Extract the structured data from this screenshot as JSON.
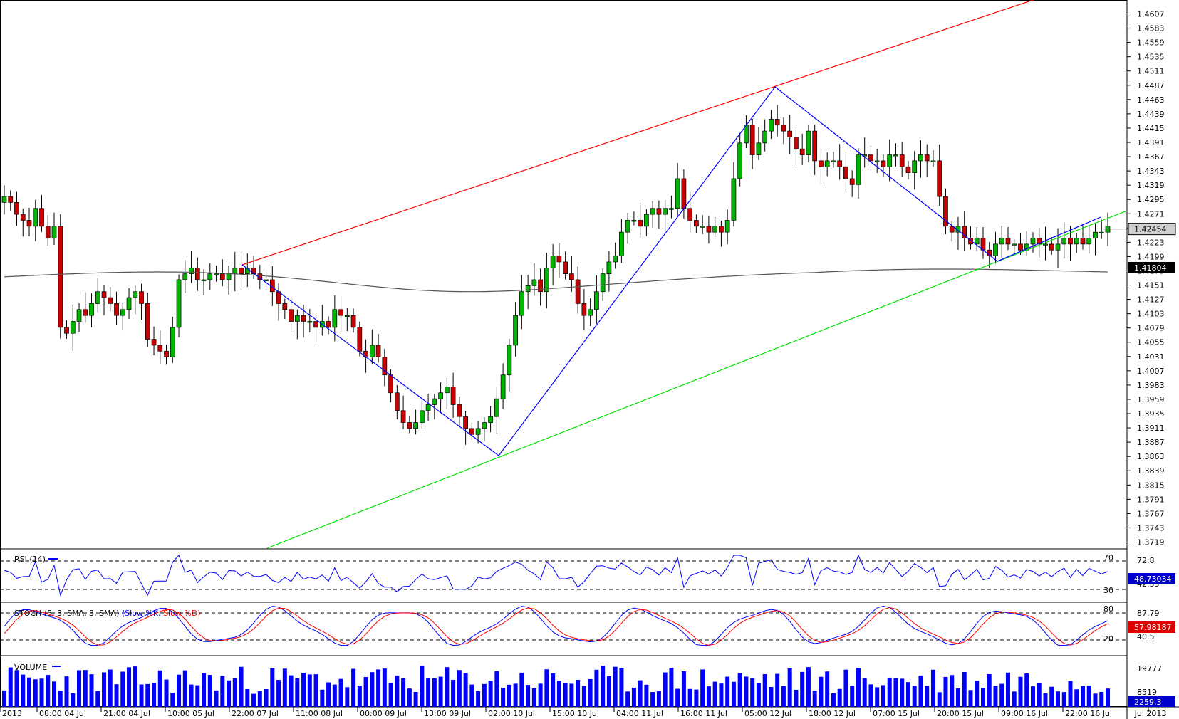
{
  "chart_data": {
    "type": "candlestick",
    "y_ticks": [
      "1.4607",
      "1.4583",
      "1.4559",
      "1.4535",
      "1.4511",
      "1.4487",
      "1.4463",
      "1.4439",
      "1.4415",
      "1.4391",
      "1.4367",
      "1.4343",
      "1.4319",
      "1.4295",
      "1.4271",
      "1.4247",
      "1.4223",
      "1.4199",
      "1.4175",
      "1.4151",
      "1.4127",
      "1.4103",
      "1.4079",
      "1.4055",
      "1.4031",
      "1.4007",
      "1.3983",
      "1.3959",
      "1.3935",
      "1.3911",
      "1.3887",
      "1.3863",
      "1.3839",
      "1.3815",
      "1.3791",
      "1.3767",
      "1.3743",
      "1.3719"
    ],
    "x_ticks": [
      "2013",
      "08:00 04 Jul",
      "21:00 04 Jul",
      "10:00 05 Jul",
      "22:00 07 Jul",
      "11:00 08 Jul",
      "00:00 09 Jul",
      "13:00 09 Jul",
      "02:00 10 Jul",
      "15:00 10 Jul",
      "04:00 11 Jul",
      "16:00 11 Jul",
      "05:00 12 Jul",
      "18:00 12 Jul",
      "07:00 15 Jul",
      "20:00 15 Jul",
      "09:00 16 Jul",
      "22:00 16 Jul",
      "Jul 2013"
    ],
    "ylim": [
      1.3716,
      1.4616
    ],
    "current_price": "1.42454",
    "moving_average_value": "1.41804",
    "closes": [
      1.43,
      1.429,
      1.427,
      1.426,
      1.425,
      1.428,
      1.425,
      1.423,
      1.425,
      1.408,
      1.407,
      1.409,
      1.411,
      1.41,
      1.412,
      1.414,
      1.413,
      1.412,
      1.41,
      1.411,
      1.413,
      1.414,
      1.412,
      1.406,
      1.405,
      1.404,
      1.403,
      1.408,
      1.416,
      1.417,
      1.418,
      1.416,
      1.416,
      1.417,
      1.417,
      1.416,
      1.417,
      1.418,
      1.417,
      1.418,
      1.417,
      1.416,
      1.416,
      1.414,
      1.412,
      1.411,
      1.409,
      1.41,
      1.409,
      1.409,
      1.408,
      1.409,
      1.408,
      1.411,
      1.41,
      1.41,
      1.408,
      1.404,
      1.403,
      1.405,
      1.403,
      1.4,
      1.397,
      1.394,
      1.392,
      1.391,
      1.392,
      1.394,
      1.395,
      1.396,
      1.397,
      1.398,
      1.395,
      1.393,
      1.391,
      1.39,
      1.391,
      1.392,
      1.393,
      1.396,
      1.4,
      1.405,
      1.41,
      1.414,
      1.415,
      1.416,
      1.414,
      1.418,
      1.42,
      1.419,
      1.417,
      1.416,
      1.412,
      1.41,
      1.411,
      1.414,
      1.417,
      1.419,
      1.42,
      1.424,
      1.426,
      1.426,
      1.425,
      1.427,
      1.428,
      1.427,
      1.428,
      1.428,
      1.433,
      1.428,
      1.426,
      1.425,
      1.425,
      1.424,
      1.425,
      1.424,
      1.426,
      1.433,
      1.439,
      1.442,
      1.437,
      1.439,
      1.441,
      1.443,
      1.442,
      1.441,
      1.44,
      1.438,
      1.437,
      1.441,
      1.436,
      1.435,
      1.436,
      1.436,
      1.435,
      1.433,
      1.432,
      1.437,
      1.437,
      1.436,
      1.436,
      1.435,
      1.437,
      1.437,
      1.435,
      1.434,
      1.436,
      1.437,
      1.436,
      1.436,
      1.43,
      1.425,
      1.424,
      1.425,
      1.423,
      1.422,
      1.423,
      1.421,
      1.42,
      1.422,
      1.423,
      1.422,
      1.422,
      1.421,
      1.422,
      1.423,
      1.422,
      1.422,
      1.421,
      1.422,
      1.423,
      1.422,
      1.423,
      1.422,
      1.423,
      1.424,
      1.424,
      1.425
    ],
    "rsi": {
      "label": "RSI (14)",
      "levels": [
        "70",
        "30"
      ],
      "scale": [
        "72.8",
        "42.55"
      ],
      "current": "48.73034"
    },
    "stoch": {
      "label_prefix": "STOCH (5, 3, SMA, 3, SMA) ",
      "k_label": "(Slow %K,",
      "d_label": "Slow %D)",
      "levels": [
        "80",
        "20"
      ],
      "scale": [
        "87.79",
        "40.5"
      ],
      "current": "57.98187"
    },
    "volume": {
      "label": "VOLUME",
      "scale": [
        "19777",
        "8519"
      ],
      "current": "2259.3"
    }
  },
  "colors": {
    "up": "#00b400",
    "down": "#c80000",
    "channel_top": "#ff0000",
    "channel_bottom": "#00e000",
    "zigzag": "#0000ff",
    "moving_average": "#555555",
    "rsi_line": "#0000ff",
    "stoch_k": "#0000ff",
    "stoch_d": "#ff0000",
    "volume_bar": "#0000ff"
  }
}
